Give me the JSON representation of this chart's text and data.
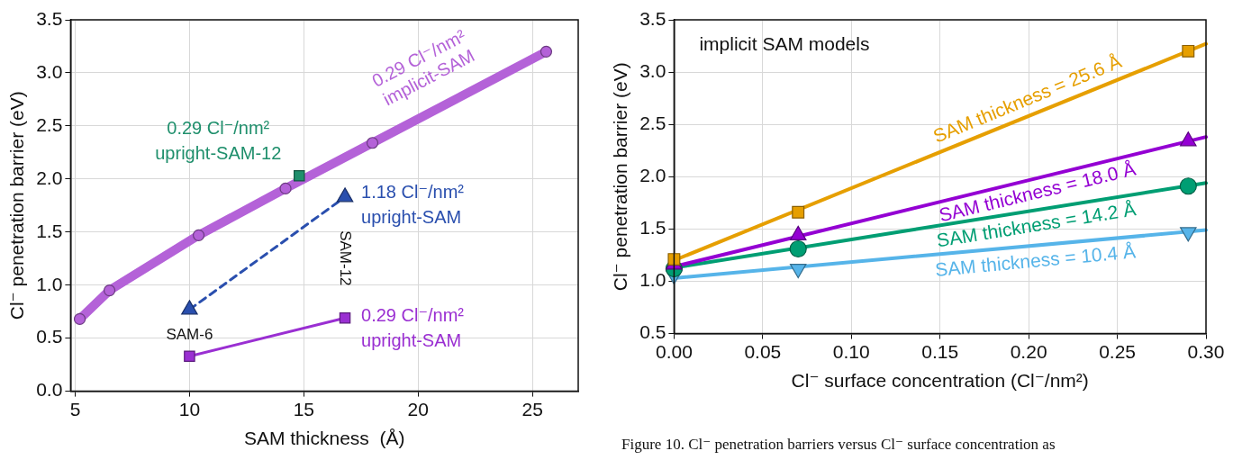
{
  "chart_data": [
    {
      "type": "line",
      "xlabel": "SAM thickness  (Å)",
      "ylabel": "Cl⁻ penetration barrier (eV)",
      "xlim": [
        4.8,
        27
      ],
      "ylim": [
        0,
        3.5
      ],
      "xticks": [
        5,
        10,
        15,
        20,
        25
      ],
      "yticks": [
        {
          "value": 0,
          "label": "0.0"
        },
        0.5,
        {
          "value": 1,
          "label": "1.0"
        },
        1.5,
        {
          "value": 2,
          "label": "2.0"
        },
        2.5,
        {
          "value": 3,
          "label": "3.0"
        },
        3.5
      ],
      "grid": true,
      "series": [
        {
          "name": "0.29 Cl⁻/nm² implicit-SAM",
          "type": "line",
          "color": "#b462d8",
          "marker": "circle",
          "x": [
            5.2,
            6.5,
            10.4,
            14.2,
            18.0,
            25.6
          ],
          "values": [
            0.68,
            0.95,
            1.47,
            1.91,
            2.34,
            3.2
          ]
        },
        {
          "name": "0.29 Cl⁻/nm² upright-SAM-12",
          "type": "scatter",
          "color": "#1f8f6c",
          "marker": "square",
          "x": [
            14.8
          ],
          "values": [
            2.03
          ]
        },
        {
          "name": "1.18 Cl⁻/nm² upright-SAM",
          "type": "line",
          "color": "#2a4fae",
          "marker": "triangle",
          "line_style": "dashed",
          "x": [
            10,
            16.8
          ],
          "values": [
            0.77,
            1.83
          ]
        },
        {
          "name": "0.29 Cl⁻/nm² upright-SAM",
          "type": "line",
          "color": "#9a2fd2",
          "marker": "square",
          "x": [
            10,
            16.8
          ],
          "values": [
            0.33,
            0.69
          ]
        }
      ],
      "annotations": [
        {
          "text": "SAM-6",
          "x": 10,
          "y": 0.77
        },
        {
          "text": "SAM-12",
          "x": 16.8,
          "y": 1.83
        }
      ]
    },
    {
      "type": "line",
      "xlabel": "Cl⁻ surface concentration (Cl⁻/nm²)",
      "ylabel": "Cl⁻ penetration barrier (eV)",
      "xlim": [
        0,
        0.3
      ],
      "ylim": [
        0.5,
        3.5
      ],
      "xticks": [
        {
          "value": 0,
          "label": "0.00"
        },
        {
          "value": 0.05,
          "label": "0.05"
        },
        {
          "value": 0.1,
          "label": "0.10"
        },
        {
          "value": 0.15,
          "label": "0.15"
        },
        {
          "value": 0.2,
          "label": "0.20"
        },
        {
          "value": 0.25,
          "label": "0.25"
        },
        {
          "value": 0.3,
          "label": "0.30"
        }
      ],
      "yticks": [
        0.5,
        {
          "value": 1,
          "label": "1.0"
        },
        1.5,
        {
          "value": 2,
          "label": "2.0"
        },
        2.5,
        {
          "value": 3,
          "label": "3.0"
        },
        3.5
      ],
      "grid": true,
      "series": [
        {
          "name": "SAM thickness = 25.6 Å",
          "type": "scatter",
          "color": "#e69f00",
          "marker": "square",
          "x": [
            0,
            0.07,
            0.29
          ],
          "values": [
            1.21,
            1.66,
            3.2
          ]
        },
        {
          "type": "line",
          "color": "#e69f00",
          "x": [
            0,
            0.3
          ],
          "values": [
            1.2,
            3.27
          ]
        },
        {
          "name": "SAM thickness = 18.0 Å",
          "type": "scatter",
          "color": "#9400d3",
          "marker": "triangle",
          "x": [
            0,
            0.07,
            0.29
          ],
          "values": [
            1.16,
            1.44,
            2.34
          ]
        },
        {
          "type": "line",
          "color": "#9400d3",
          "x": [
            0,
            0.3
          ],
          "values": [
            1.14,
            2.38
          ]
        },
        {
          "name": "SAM thickness = 14.2 Å",
          "type": "scatter",
          "color": "#009e73",
          "marker": "circle",
          "x": [
            0,
            0.07,
            0.29
          ],
          "values": [
            1.12,
            1.31,
            1.91
          ]
        },
        {
          "type": "line",
          "color": "#009e73",
          "x": [
            0,
            0.3
          ],
          "values": [
            1.13,
            1.94
          ]
        },
        {
          "name": "SAM thickness = 10.4 Å",
          "type": "scatter",
          "color": "#56b4e9",
          "marker": "triangle-down",
          "x": [
            0,
            0.07,
            0.29
          ],
          "values": [
            1.06,
            1.12,
            1.47
          ]
        },
        {
          "type": "line",
          "color": "#56b4e9",
          "x": [
            0,
            0.3
          ],
          "values": [
            1.03,
            1.49
          ]
        }
      ],
      "annotations": [
        "implicit SAM models",
        "Figure 10. Cl⁻ penetration barriers versus Cl⁻ surface concentration as"
      ]
    }
  ]
}
